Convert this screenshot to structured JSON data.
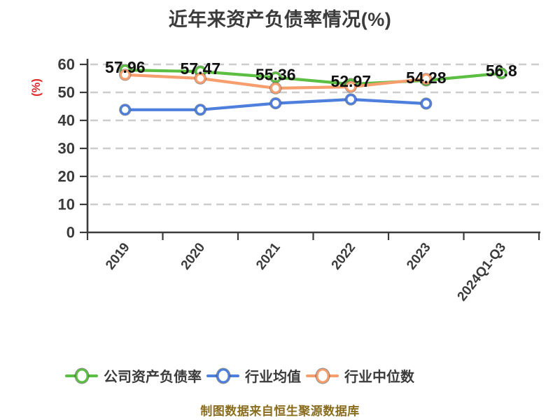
{
  "title": "近年来资产负债率情况(%)",
  "caption": "制图数据来自恒生聚源数据库",
  "colors": {
    "axis": "#3b3b3b",
    "grid": "#cccccc",
    "title_text": "#3b3b3b",
    "data_label": "#111111",
    "y_unit": "#e02b2b",
    "caption_text": "#8a6c1e"
  },
  "chart_data": {
    "type": "line",
    "title": "近年来资产负债率情况(%)",
    "categories": [
      "2019",
      "2020",
      "2021",
      "2022",
      "2023",
      "2024Q1-Q3"
    ],
    "y_axis": {
      "label": "(%)",
      "min": 0,
      "max": 60,
      "tick_step": 10,
      "ticks": [
        "0",
        "10",
        "20",
        "30",
        "40",
        "50",
        "60"
      ]
    },
    "grid": "dashed-horizontal",
    "legend_position": "bottom",
    "series": [
      {
        "name": "公司资产负债率",
        "color": "#5cbe42",
        "values": [
          57.96,
          57.47,
          55.36,
          52.97,
          54.28,
          56.8
        ],
        "labels": [
          "57.96",
          "57.47",
          "55.36",
          "52.97",
          "54.28",
          "56.8"
        ],
        "show_labels": true
      },
      {
        "name": "行业均值",
        "color": "#4e7fdd",
        "values": [
          43.8,
          43.8,
          46.1,
          47.5,
          46.0,
          null
        ],
        "show_labels": false
      },
      {
        "name": "行业中位数",
        "color": "#f79e6e",
        "values": [
          56.3,
          55.0,
          51.5,
          52.0,
          54.8,
          null
        ],
        "show_labels": false
      }
    ]
  }
}
